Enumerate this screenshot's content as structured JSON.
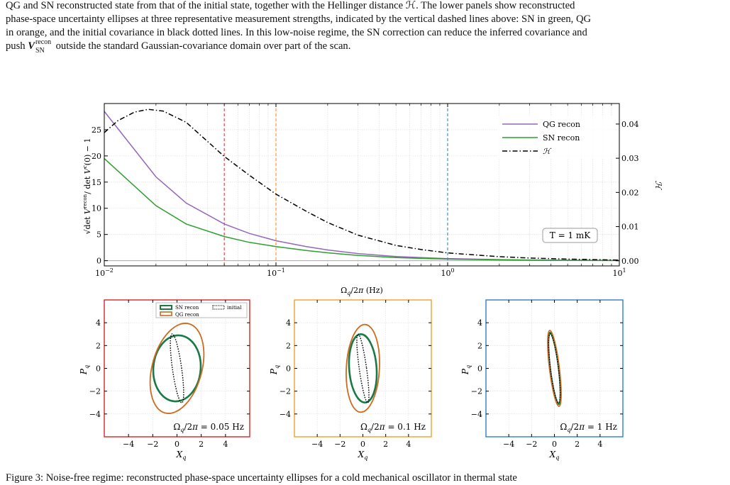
{
  "caption_top": {
    "line1": "QG and SN reconstructed state from that of the initial state, together with the Hellinger distance ℋ. The lower panels show reconstructed",
    "line2": "phase-space uncertainty ellipses at three representative measurement strengths, indicated by the vertical dashed lines above: SN in green, QG",
    "line3": "in orange, and the initial covariance in black dotted lines. In this low-noise regime, the SN correction can reduce the inferred covariance and",
    "line4_pre": "push ",
    "line4_V": "V",
    "line4_sub": "SN",
    "line4_sup": "recon",
    "line4_post": " outside the standard Gaussian-covariance domain over part of the scan."
  },
  "caption_bottom": "Figure 3: Noise-free regime: reconstructed phase-space uncertainty ellipses for a cold mechanical oscillator in thermal state",
  "colors": {
    "qg_main": "#9467bd",
    "sn_main": "#2ca02c",
    "hellinger": "#000000",
    "vline_red": "#d62728",
    "vline_orange": "#ff7f0e",
    "vline_blue": "#1f77b4",
    "sn_ellipse": "#1a7a46",
    "qg_ellipse": "#cc6a1f",
    "frame_red": "#d62728",
    "frame_orange": "#f0a030",
    "frame_blue": "#2e7fc1"
  },
  "chart_data": [
    {
      "type": "line",
      "xscale": "log",
      "xlim": [
        0.01,
        10
      ],
      "xlabel": "Ω_q/2π (Hz)",
      "ylabel": "√(det V^recon / det V^c(0)) − 1",
      "ylim": [
        -1,
        30
      ],
      "y2label": "ℋ",
      "y2lim": [
        -0.0015,
        0.046
      ],
      "xticks": [
        "10⁻²",
        "10⁻¹",
        "10⁰",
        "10¹"
      ],
      "yticks": [
        "0",
        "5",
        "10",
        "15",
        "20",
        "25"
      ],
      "y2ticks": [
        "0.00",
        "0.01",
        "0.02",
        "0.03",
        "0.04"
      ],
      "grid": true,
      "legend_position": "top-right",
      "annotation": "T = 1 mK",
      "vlines": [
        0.05,
        0.1,
        1
      ],
      "series": [
        {
          "name": "QG recon",
          "axis": "left",
          "x": [
            0.01,
            0.02,
            0.03,
            0.05,
            0.07,
            0.1,
            0.15,
            0.2,
            0.3,
            0.5,
            0.7,
            1,
            2,
            3,
            5,
            10
          ],
          "values": [
            28.5,
            16,
            11,
            7,
            5.2,
            3.8,
            2.7,
            2.05,
            1.35,
            0.8,
            0.58,
            0.4,
            0.2,
            0.13,
            0.08,
            0.04
          ]
        },
        {
          "name": "SN recon",
          "axis": "left",
          "x": [
            0.01,
            0.02,
            0.03,
            0.05,
            0.07,
            0.1,
            0.15,
            0.2,
            0.3,
            0.5,
            0.7,
            1,
            2,
            3,
            5,
            10
          ],
          "values": [
            19.5,
            10.5,
            7,
            4.6,
            3.5,
            2.7,
            1.95,
            1.5,
            1.0,
            0.6,
            0.43,
            0.3,
            0.15,
            0.1,
            0.06,
            0.03
          ]
        },
        {
          "name": "ℋ",
          "axis": "right",
          "x": [
            0.01,
            0.012,
            0.015,
            0.018,
            0.022,
            0.03,
            0.05,
            0.07,
            0.1,
            0.15,
            0.2,
            0.3,
            0.5,
            0.7,
            1,
            2,
            3,
            5,
            10
          ],
          "values": [
            0.0375,
            0.041,
            0.0435,
            0.0443,
            0.0438,
            0.0405,
            0.0305,
            0.025,
            0.0195,
            0.0145,
            0.0112,
            0.0075,
            0.0045,
            0.0033,
            0.0023,
            0.0012,
            0.0008,
            0.0005,
            0.0002
          ]
        }
      ]
    },
    {
      "type": "scatter",
      "panel": "left",
      "xlabel": "X_q",
      "ylabel": "P_q",
      "xlim": [
        -6,
        6
      ],
      "ylim": [
        -6,
        6
      ],
      "xticks": [
        "−4",
        "−2",
        "0",
        "2",
        "4"
      ],
      "yticks": [
        "−4",
        "−2",
        "0",
        "2",
        "4"
      ],
      "annotation": "Ω_q/2π = 0.05 Hz",
      "legend_position": "top-center",
      "legend": [
        {
          "name": "SN recon"
        },
        {
          "name": "QG recon"
        },
        {
          "name": "initial"
        }
      ],
      "ellipses": [
        {
          "name": "SN recon",
          "cx": 0,
          "cy": 0,
          "a": 1.95,
          "b": 2.9,
          "angle_deg": 5
        },
        {
          "name": "QG recon",
          "cx": 0,
          "cy": 0,
          "a": 2.05,
          "b": 4.05,
          "angle_deg": 15
        },
        {
          "name": "initial",
          "cx": 0,
          "cy": 0,
          "a": 0.38,
          "b": 3.05,
          "angle_deg": -8
        }
      ]
    },
    {
      "type": "scatter",
      "panel": "middle",
      "xlabel": "X_q",
      "ylabel": "P_q",
      "xlim": [
        -6,
        6
      ],
      "ylim": [
        -6,
        6
      ],
      "xticks": [
        "−4",
        "−2",
        "0",
        "2",
        "4"
      ],
      "yticks": [
        "−4",
        "−2",
        "0",
        "2",
        "4"
      ],
      "annotation": "Ω_q/2π = 0.1 Hz",
      "ellipses": [
        {
          "name": "SN recon",
          "cx": 0,
          "cy": 0,
          "a": 1.2,
          "b": 3.0,
          "angle_deg": -4
        },
        {
          "name": "QG recon",
          "cx": 0,
          "cy": 0,
          "a": 1.45,
          "b": 3.85,
          "angle_deg": 3
        },
        {
          "name": "initial",
          "cx": 0,
          "cy": 0,
          "a": 0.32,
          "b": 3.05,
          "angle_deg": -8
        }
      ]
    },
    {
      "type": "scatter",
      "panel": "right",
      "xlabel": "X_q",
      "ylabel": "P_q",
      "xlim": [
        -6,
        6
      ],
      "ylim": [
        -6,
        6
      ],
      "xticks": [
        "−4",
        "−2",
        "0",
        "2",
        "4"
      ],
      "yticks": [
        "−4",
        "−2",
        "0",
        "2",
        "4"
      ],
      "annotation": "Ω_q/2π = 1 Hz",
      "ellipses": [
        {
          "name": "SN recon",
          "cx": 0,
          "cy": 0,
          "a": 0.38,
          "b": 3.15,
          "angle_deg": -7
        },
        {
          "name": "QG recon",
          "cx": 0,
          "cy": 0,
          "a": 0.43,
          "b": 3.35,
          "angle_deg": -7
        },
        {
          "name": "initial",
          "cx": 0,
          "cy": 0,
          "a": 0.35,
          "b": 3.05,
          "angle_deg": -7
        }
      ]
    }
  ]
}
